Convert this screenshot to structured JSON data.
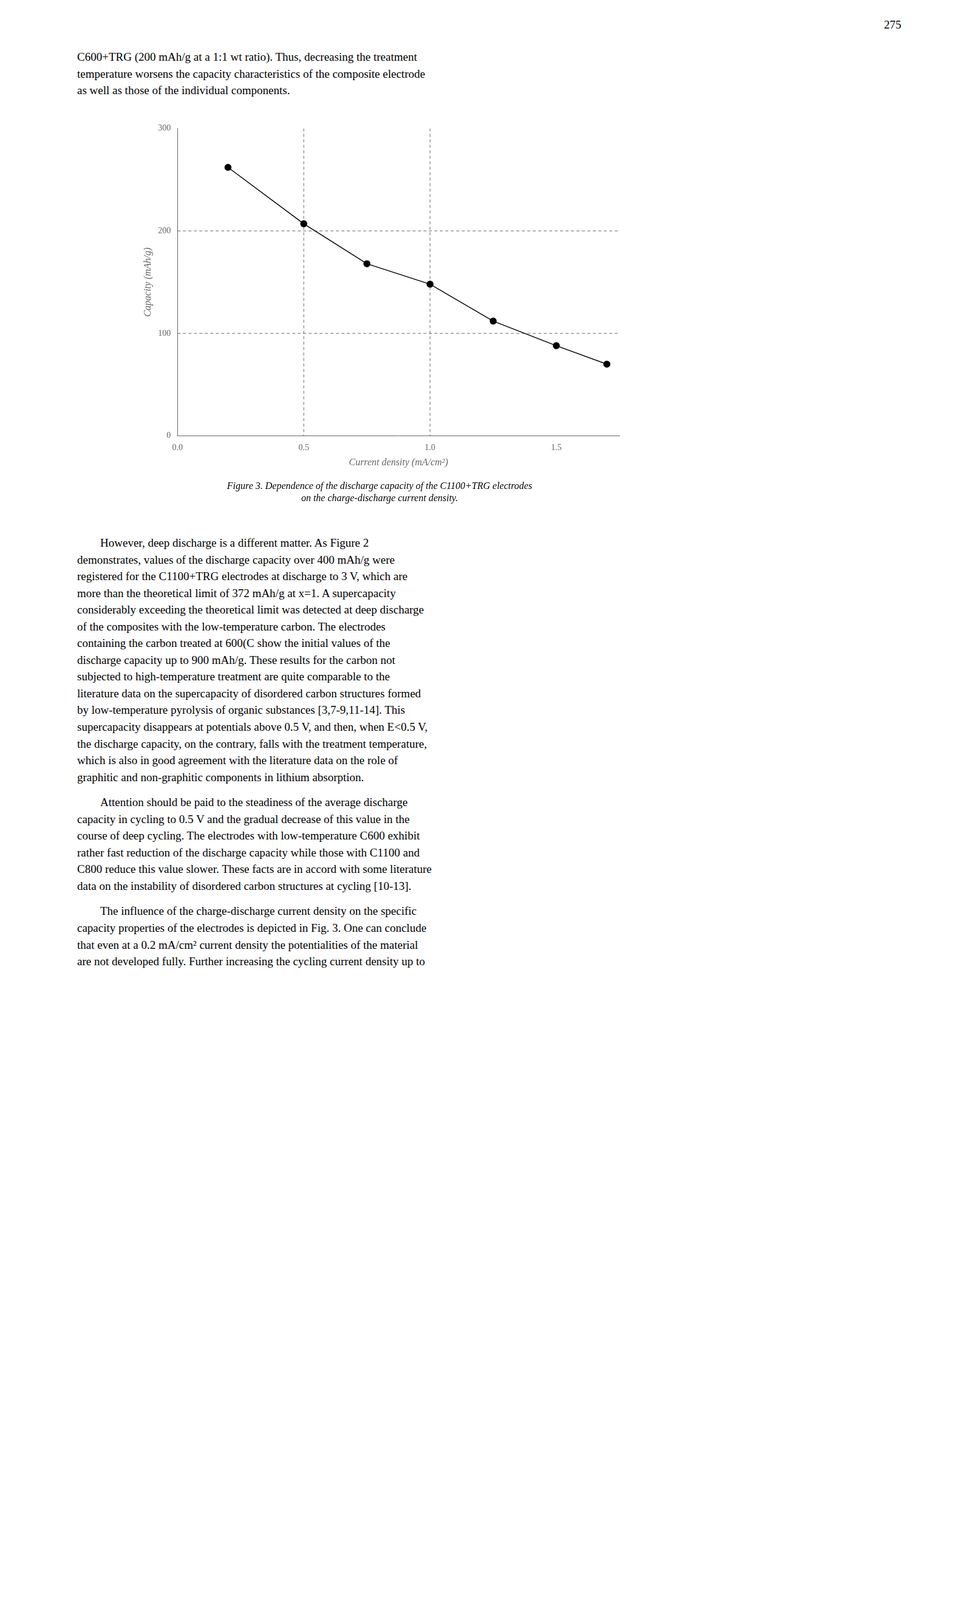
{
  "chart_data": {
    "type": "line",
    "title": [
      "Figure 3. Dependence of the discharge capacity of the C1100+TRG electrodes",
      "on the charge-discharge current density."
    ],
    "x_label": "Current density (mA/cm²)",
    "y_label": "Capacity (mAh/g)",
    "x": [
      0.2,
      0.5,
      0.75,
      1.0,
      1.25,
      1.5,
      1.7
    ],
    "values": [
      262,
      207,
      168,
      148,
      112,
      88,
      70
    ],
    "color": "#000000",
    "marker": "circle",
    "xlim": [
      0,
      1.75
    ],
    "ylim": [
      0,
      300
    ],
    "xticks": [
      {
        "value": 0,
        "label": "0.0"
      },
      0.5,
      {
        "value": 1,
        "label": "1.0"
      },
      1.5
    ],
    "yticks": [
      0,
      100,
      200,
      300
    ],
    "hlines": [
      200,
      100
    ],
    "vlines": [
      0.5,
      1.0
    ],
    "grid": false,
    "annotations": [
      "275",
      "C600+TRG (200 mAh/g at a 1:1 wt ratio). Thus, decreasing the treatment\ntemperature worsens the capacity characteristics of the composite electrode\nas well as those of the individual components.",
      "        However, deep discharge is a different matter. As Figure 2\ndemonstrates, values of the discharge capacity over 400 mAh/g were\nregistered for the C1100+TRG electrodes at discharge to 3 V, which are\nmore than the theoretical limit of 372 mAh/g at x=1. A supercapacity\nconsiderably exceeding the theoretical limit was detected at deep discharge\nof the composites with the low-temperature carbon. The electrodes\ncontaining the carbon treated at 600(C show the initial values of the\ndischarge capacity up to 900 mAh/g. These results for the carbon not\nsubjected to high-temperature treatment are quite comparable to the\nliterature data on the supercapacity of disordered carbon structures formed\nby low-temperature pyrolysis of organic substances [3,7-9,11-14]. This\nsupercapacity disappears at potentials above 0.5 V, and then, when E<0.5 V,\nthe discharge capacity, on the contrary, falls with the treatment temperature,\nwhich is also in good agreement with the literature data on the role of\ngraphitic and non-graphitic components in lithium absorption.",
      "        Attention should be paid to the steadiness of the average discharge\ncapacity in cycling to 0.5 V and the gradual decrease of this value in the\ncourse of deep cycling. The electrodes with low-temperature C600 exhibit\nrather fast reduction of the discharge capacity while those with C1100 and\nC800 reduce this value slower. These facts are in accord with some literature\ndata on the instability of disordered carbon structures at cycling [10-13].",
      "        The influence of the charge-discharge current density on the specific\ncapacity properties of the electrodes is depicted in Fig. 3. One can conclude\nthat even at a 0.2 mA/cm² current density the potentialities of the material\nare not developed fully. Further increasing the cycling current density up to"
    ]
  }
}
